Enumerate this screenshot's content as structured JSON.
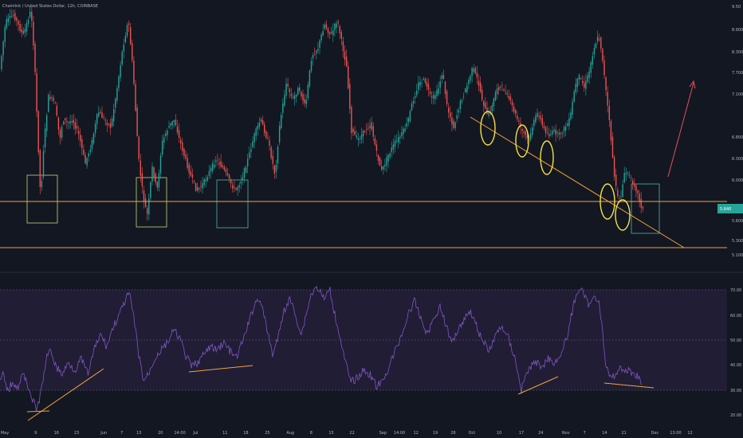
{
  "title": "Chainlink / United States Dollar, 12h, COINBASE",
  "colors": {
    "background": "#131722",
    "up": "#26a69a",
    "down": "#ef5350",
    "support_line": "#f2a33a",
    "trendline": "#f2a33a",
    "ellipse": "#f5e042",
    "box_green": "#4db6ac",
    "box_yellow": "#c8d67a",
    "rsi_line": "#7e57c2",
    "rsi_band": "#2a2440",
    "arrow": "#e0525a",
    "current_price": "#26a69a"
  },
  "x_axis": {
    "labels": [
      {
        "text": "May",
        "pos": 0.0
      },
      {
        "text": "9",
        "pos": 0.043
      },
      {
        "text": "16",
        "pos": 0.072
      },
      {
        "text": "23",
        "pos": 0.1
      },
      {
        "text": "Jun",
        "pos": 0.138
      },
      {
        "text": "7",
        "pos": 0.163
      },
      {
        "text": "13",
        "pos": 0.187
      },
      {
        "text": "20",
        "pos": 0.217
      },
      {
        "text": "14:00",
        "pos": 0.244
      },
      {
        "text": "Jul",
        "pos": 0.266
      },
      {
        "text": "11",
        "pos": 0.307
      },
      {
        "text": "18",
        "pos": 0.336
      },
      {
        "text": "25",
        "pos": 0.366
      },
      {
        "text": "Aug",
        "pos": 0.398
      },
      {
        "text": "8",
        "pos": 0.427
      },
      {
        "text": "15",
        "pos": 0.455
      },
      {
        "text": "22",
        "pos": 0.484
      },
      {
        "text": "Sep",
        "pos": 0.527
      },
      {
        "text": "14:00",
        "pos": 0.55
      },
      {
        "text": "12",
        "pos": 0.573
      },
      {
        "text": "19",
        "pos": 0.6
      },
      {
        "text": "26",
        "pos": 0.625
      },
      {
        "text": "Oct",
        "pos": 0.651
      },
      {
        "text": "10",
        "pos": 0.689
      },
      {
        "text": "17",
        "pos": 0.72
      },
      {
        "text": "24",
        "pos": 0.747
      },
      {
        "text": "Nov",
        "pos": 0.782
      },
      {
        "text": "7",
        "pos": 0.808
      },
      {
        "text": "14",
        "pos": 0.836
      },
      {
        "text": "21",
        "pos": 0.863
      },
      {
        "text": "Dec",
        "pos": 0.906
      },
      {
        "text": "13:00",
        "pos": 0.935
      },
      {
        "text": "12",
        "pos": 0.955
      }
    ]
  },
  "price_axis": {
    "ticks": [
      "9.50",
      "8.900",
      "8.300",
      "7.700",
      "7.100",
      "6.800",
      "6.300",
      "6.000",
      "5.600",
      "5.300",
      "5.100"
    ]
  },
  "rsi_axis": {
    "ticks": [
      "70.00",
      "60.00",
      "50.00",
      "40.00",
      "30.00",
      "20.00"
    ]
  },
  "current_price": {
    "label": "5.640",
    "value": 5.64
  },
  "chart_data": [
    {
      "type": "candlestick",
      "title": "Chainlink / United States Dollar, 12h, COINBASE",
      "ylim": [
        5.1,
        9.5
      ],
      "support_levels": [
        5.8,
        5.1
      ],
      "key_points": [
        {
          "date": "May 6",
          "price": 9.4
        },
        {
          "date": "May 12",
          "price": 5.3
        },
        {
          "date": "Jun 10",
          "price": 9.2
        },
        {
          "date": "Jun 14",
          "price": 5.2
        },
        {
          "date": "Jul 1",
          "price": 5.8
        },
        {
          "date": "Aug 20",
          "price": 9.2
        },
        {
          "date": "Sep 8",
          "price": 6.3
        },
        {
          "date": "Oct 1",
          "price": 8.0
        },
        {
          "date": "Oct 20",
          "price": 6.9
        },
        {
          "date": "Nov 3",
          "price": 8.7
        },
        {
          "date": "Nov 16",
          "price": 5.6
        },
        {
          "date": "Nov 23",
          "price": 5.6
        }
      ]
    },
    {
      "type": "line",
      "title": "RSI",
      "ylim": [
        20,
        70
      ],
      "bands": [
        30,
        70
      ],
      "key_points": [
        {
          "date": "May 9",
          "value": 23
        },
        {
          "date": "Jun 7",
          "value": 66
        },
        {
          "date": "Jun 14",
          "value": 34
        },
        {
          "date": "Jul 11",
          "value": 40
        },
        {
          "date": "Jul 20",
          "value": 66
        },
        {
          "date": "Aug 20",
          "value": 72
        },
        {
          "date": "Sep 5",
          "value": 30
        },
        {
          "date": "Oct 1",
          "value": 58
        },
        {
          "date": "Oct 17",
          "value": 31
        },
        {
          "date": "Nov 3",
          "value": 71
        },
        {
          "date": "Nov 16",
          "value": 37
        },
        {
          "date": "Nov 23",
          "value": 31
        }
      ]
    }
  ]
}
